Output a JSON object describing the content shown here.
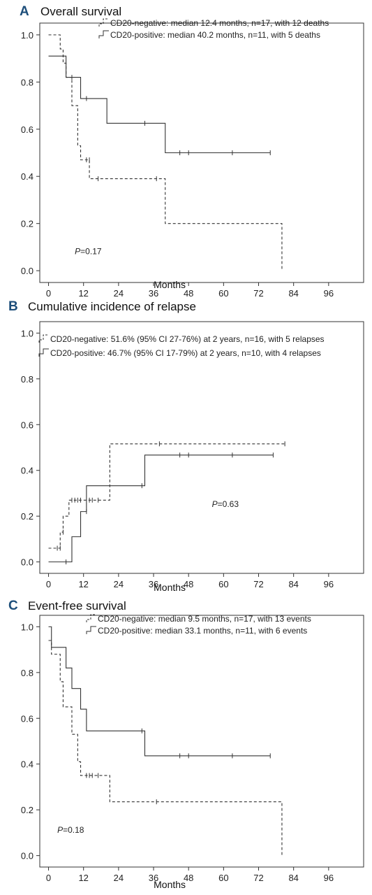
{
  "chart_data": [
    {
      "type": "line",
      "letter": "A",
      "title": "Overall survival",
      "xlabel": "Months",
      "ylabel": "",
      "xlim": [
        -3,
        108
      ],
      "ylim": [
        -0.05,
        1.05
      ],
      "xticks": [
        0,
        12,
        24,
        36,
        48,
        60,
        72,
        84,
        96
      ],
      "yticks": [
        0.0,
        0.2,
        0.4,
        0.6,
        0.8,
        1.0
      ],
      "pvalue_label": "P",
      "pvalue_text": "=0.17",
      "pvalue_pos": [
        9,
        0.07
      ],
      "legend_placement": "top-right",
      "series": [
        {
          "name": "CD20-negative: median 12.4 months, n=17, with 12 deaths",
          "style": "dashed",
          "steps": [
            [
              0,
              1.0
            ],
            [
              4,
              0.94
            ],
            [
              5,
              0.88
            ],
            [
              6,
              0.82
            ],
            [
              8,
              0.7
            ],
            [
              10,
              0.53
            ],
            [
              11,
              0.47
            ],
            [
              14,
              0.39
            ],
            [
              40,
              0.2
            ],
            [
              80,
              0.0
            ]
          ],
          "end_x": 80,
          "censors": [
            [
              13,
              0.47
            ],
            [
              14,
              0.47
            ],
            [
              17,
              0.39
            ],
            [
              37,
              0.39
            ]
          ]
        },
        {
          "name": "CD20-positive: median 40.2 months, n=11, with 5 deaths",
          "style": "solid",
          "steps": [
            [
              0,
              0.91
            ],
            [
              6,
              0.82
            ],
            [
              11,
              0.73
            ],
            [
              20,
              0.625
            ],
            [
              40,
              0.5
            ]
          ],
          "end_x": 76,
          "censors": [
            [
              8,
              0.82
            ],
            [
              13,
              0.73
            ],
            [
              33,
              0.625
            ],
            [
              45,
              0.5
            ],
            [
              48,
              0.5
            ],
            [
              63,
              0.5
            ],
            [
              76,
              0.5
            ]
          ]
        }
      ]
    },
    {
      "type": "line",
      "letter": "B",
      "title": "Cumulative incidence of relapse",
      "xlabel": "Months",
      "ylabel": "",
      "xlim": [
        -3,
        108
      ],
      "ylim": [
        -0.05,
        1.05
      ],
      "xticks": [
        0,
        12,
        24,
        36,
        48,
        60,
        72,
        84,
        96
      ],
      "yticks": [
        0.0,
        0.2,
        0.4,
        0.6,
        0.8,
        1.0
      ],
      "pvalue_label": "P",
      "pvalue_text": "=0.63",
      "pvalue_pos": [
        56,
        0.24
      ],
      "legend_placement": "top-left",
      "series": [
        {
          "name": "CD20-negative: 51.6% (95% CI 27-76%) at 2 years, n=16, with 5 relapses",
          "style": "dashed",
          "steps": [
            [
              0,
              0.06
            ],
            [
              4,
              0.13
            ],
            [
              5,
              0.2
            ],
            [
              7,
              0.27
            ],
            [
              21,
              0.516
            ]
          ],
          "end_x": 81,
          "censors": [
            [
              3,
              0.06
            ],
            [
              4,
              0.06
            ],
            [
              5,
              0.13
            ],
            [
              8,
              0.27
            ],
            [
              9,
              0.27
            ],
            [
              10,
              0.27
            ],
            [
              11,
              0.27
            ],
            [
              14,
              0.27
            ],
            [
              15,
              0.27
            ],
            [
              17,
              0.27
            ],
            [
              38,
              0.516
            ],
            [
              81,
              0.516
            ]
          ]
        },
        {
          "name": "CD20-positive: 46.7% (95% CI 17-79%) at 2 years, n=10, with 4 relapses",
          "style": "solid",
          "steps": [
            [
              0,
              0.0
            ],
            [
              8,
              0.11
            ],
            [
              11,
              0.22
            ],
            [
              13,
              0.333
            ],
            [
              33,
              0.467
            ]
          ],
          "end_x": 77,
          "censors": [
            [
              6,
              0.0
            ],
            [
              13,
              0.22
            ],
            [
              32,
              0.333
            ],
            [
              45,
              0.467
            ],
            [
              48,
              0.467
            ],
            [
              63,
              0.467
            ],
            [
              77,
              0.467
            ]
          ]
        }
      ]
    },
    {
      "type": "line",
      "letter": "C",
      "title": "Event-free survival",
      "xlabel": "Months",
      "ylabel": "",
      "xlim": [
        -3,
        108
      ],
      "ylim": [
        -0.05,
        1.05
      ],
      "xticks": [
        0,
        12,
        24,
        36,
        48,
        60,
        72,
        84,
        96
      ],
      "yticks": [
        0.0,
        0.2,
        0.4,
        0.6,
        0.8,
        1.0
      ],
      "pvalue_label": "P",
      "pvalue_text": "=0.18",
      "pvalue_pos": [
        3,
        0.1
      ],
      "legend_placement": "top-right",
      "series": [
        {
          "name": "CD20-negative: median 9.5 months, n=17, with 13 events",
          "style": "dashed",
          "steps": [
            [
              0,
              0.94
            ],
            [
              1,
              0.88
            ],
            [
              4,
              0.76
            ],
            [
              5,
              0.65
            ],
            [
              8,
              0.53
            ],
            [
              10,
              0.41
            ],
            [
              11,
              0.35
            ],
            [
              21,
              0.235
            ],
            [
              80,
              0.0
            ]
          ],
          "end_x": 80,
          "censors": [
            [
              13,
              0.35
            ],
            [
              14,
              0.35
            ],
            [
              15,
              0.35
            ],
            [
              17,
              0.35
            ],
            [
              37,
              0.235
            ]
          ]
        },
        {
          "name": "CD20-positive: median 33.1 months, n=11, with 6 events",
          "style": "solid",
          "steps": [
            [
              0,
              1.0
            ],
            [
              1,
              0.91
            ],
            [
              6,
              0.82
            ],
            [
              8,
              0.73
            ],
            [
              11,
              0.64
            ],
            [
              13,
              0.545
            ],
            [
              33,
              0.436
            ]
          ],
          "end_x": 76,
          "censors": [
            [
              32,
              0.545
            ],
            [
              45,
              0.436
            ],
            [
              48,
              0.436
            ],
            [
              63,
              0.436
            ],
            [
              76,
              0.436
            ]
          ]
        }
      ]
    }
  ]
}
